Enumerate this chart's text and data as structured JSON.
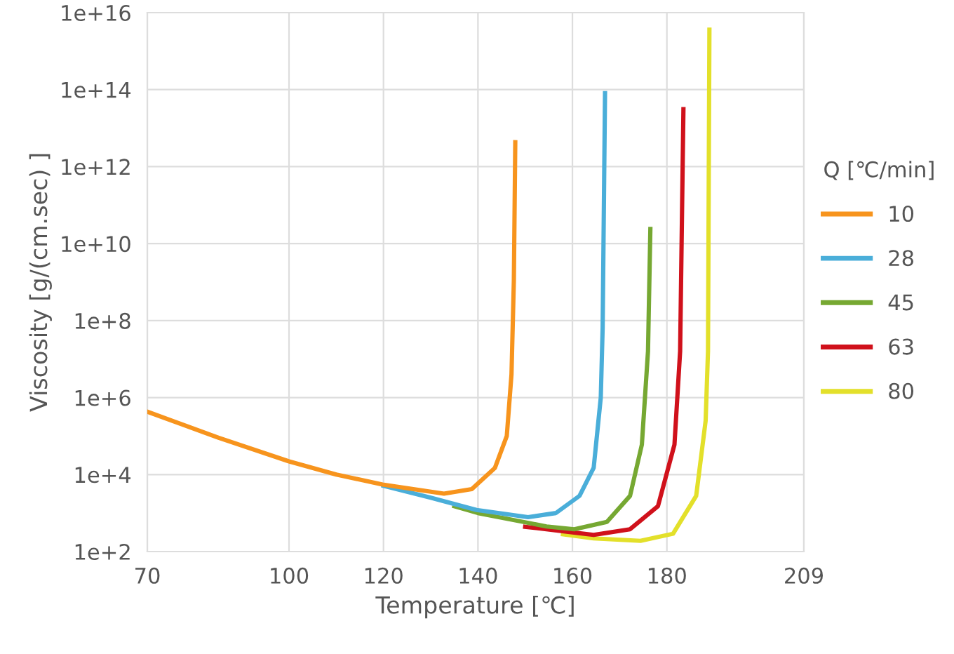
{
  "chart_data": {
    "type": "line",
    "xlabel": "Temperature [℃]",
    "ylabel": "Viscosity [g/(cm.sec) ]",
    "legend_title": "Q [℃/min]",
    "legend": "right",
    "grid": true,
    "log": "y",
    "line_style": "solid",
    "marker": "none",
    "xlim": [
      70,
      209
    ],
    "xticks": [
      70,
      100,
      120,
      140,
      160,
      180,
      209
    ],
    "ylim": [
      100,
      1e+16
    ],
    "yticks": [
      {
        "value": 100,
        "label": "1e+2"
      },
      {
        "value": 10000,
        "label": "1e+4"
      },
      {
        "value": 1000000,
        "label": "1e+6"
      },
      {
        "value": 100000000,
        "label": "1e+8"
      },
      {
        "value": 10000000000.0,
        "label": "1e+10"
      },
      {
        "value": 1000000000000.0,
        "label": "1e+12"
      },
      {
        "value": 100000000000000.0,
        "label": "1e+14"
      },
      {
        "value": 1e+16,
        "label": "1e+16"
      }
    ],
    "series": [
      {
        "name": "10",
        "color": "#f7941d",
        "x": [
          70,
          85,
          100,
          110,
          119.8,
          132.8,
          138.7,
          143.6,
          146.1,
          147.1,
          147.6,
          147.9
        ],
        "values": [
          430000.0,
          91000.0,
          22000.0,
          10000.0,
          5500.0,
          3200.0,
          4200.0,
          15000.0,
          100000.0,
          4000000.0,
          1100000000.0,
          4300000000000.0
        ]
      },
      {
        "name": "28",
        "color": "#4aaed9",
        "x": [
          120,
          130,
          139.7,
          150.6,
          156.5,
          161.5,
          164.5,
          166,
          166.4,
          166.9
        ],
        "values": [
          5100.0,
          2500.0,
          1200.0,
          780.0,
          1000.0,
          2800.0,
          15000.0,
          1000000.0,
          66000000.0,
          81000000000000.0
        ]
      },
      {
        "name": "45",
        "color": "#76a832",
        "x": [
          135,
          140,
          154.5,
          160.4,
          167.3,
          172.2,
          174.7,
          176,
          176.5
        ],
        "values": [
          1500.0,
          1000.0,
          450.0,
          380.0,
          590.0,
          2800.0,
          60000.0,
          16000000.0,
          24000000000.0
        ]
      },
      {
        "name": "63",
        "color": "#d0111b",
        "x": [
          150,
          154.5,
          164.5,
          172.2,
          178.1,
          181.6,
          182.8,
          183.5
        ],
        "values": [
          440.0,
          380.0,
          270.0,
          380.0,
          1500.0,
          60000.0,
          16000000.0,
          31000000000000.0
        ]
      },
      {
        "name": "80",
        "color": "#e3e02a",
        "x": [
          158,
          164.5,
          174.4,
          181.3,
          186.2,
          188.2,
          188.7,
          189
        ],
        "values": [
          280.0,
          220.0,
          190.0,
          290.0,
          2800.0,
          250000.0,
          16000000.0,
          3600000000000000.0
        ]
      }
    ]
  }
}
